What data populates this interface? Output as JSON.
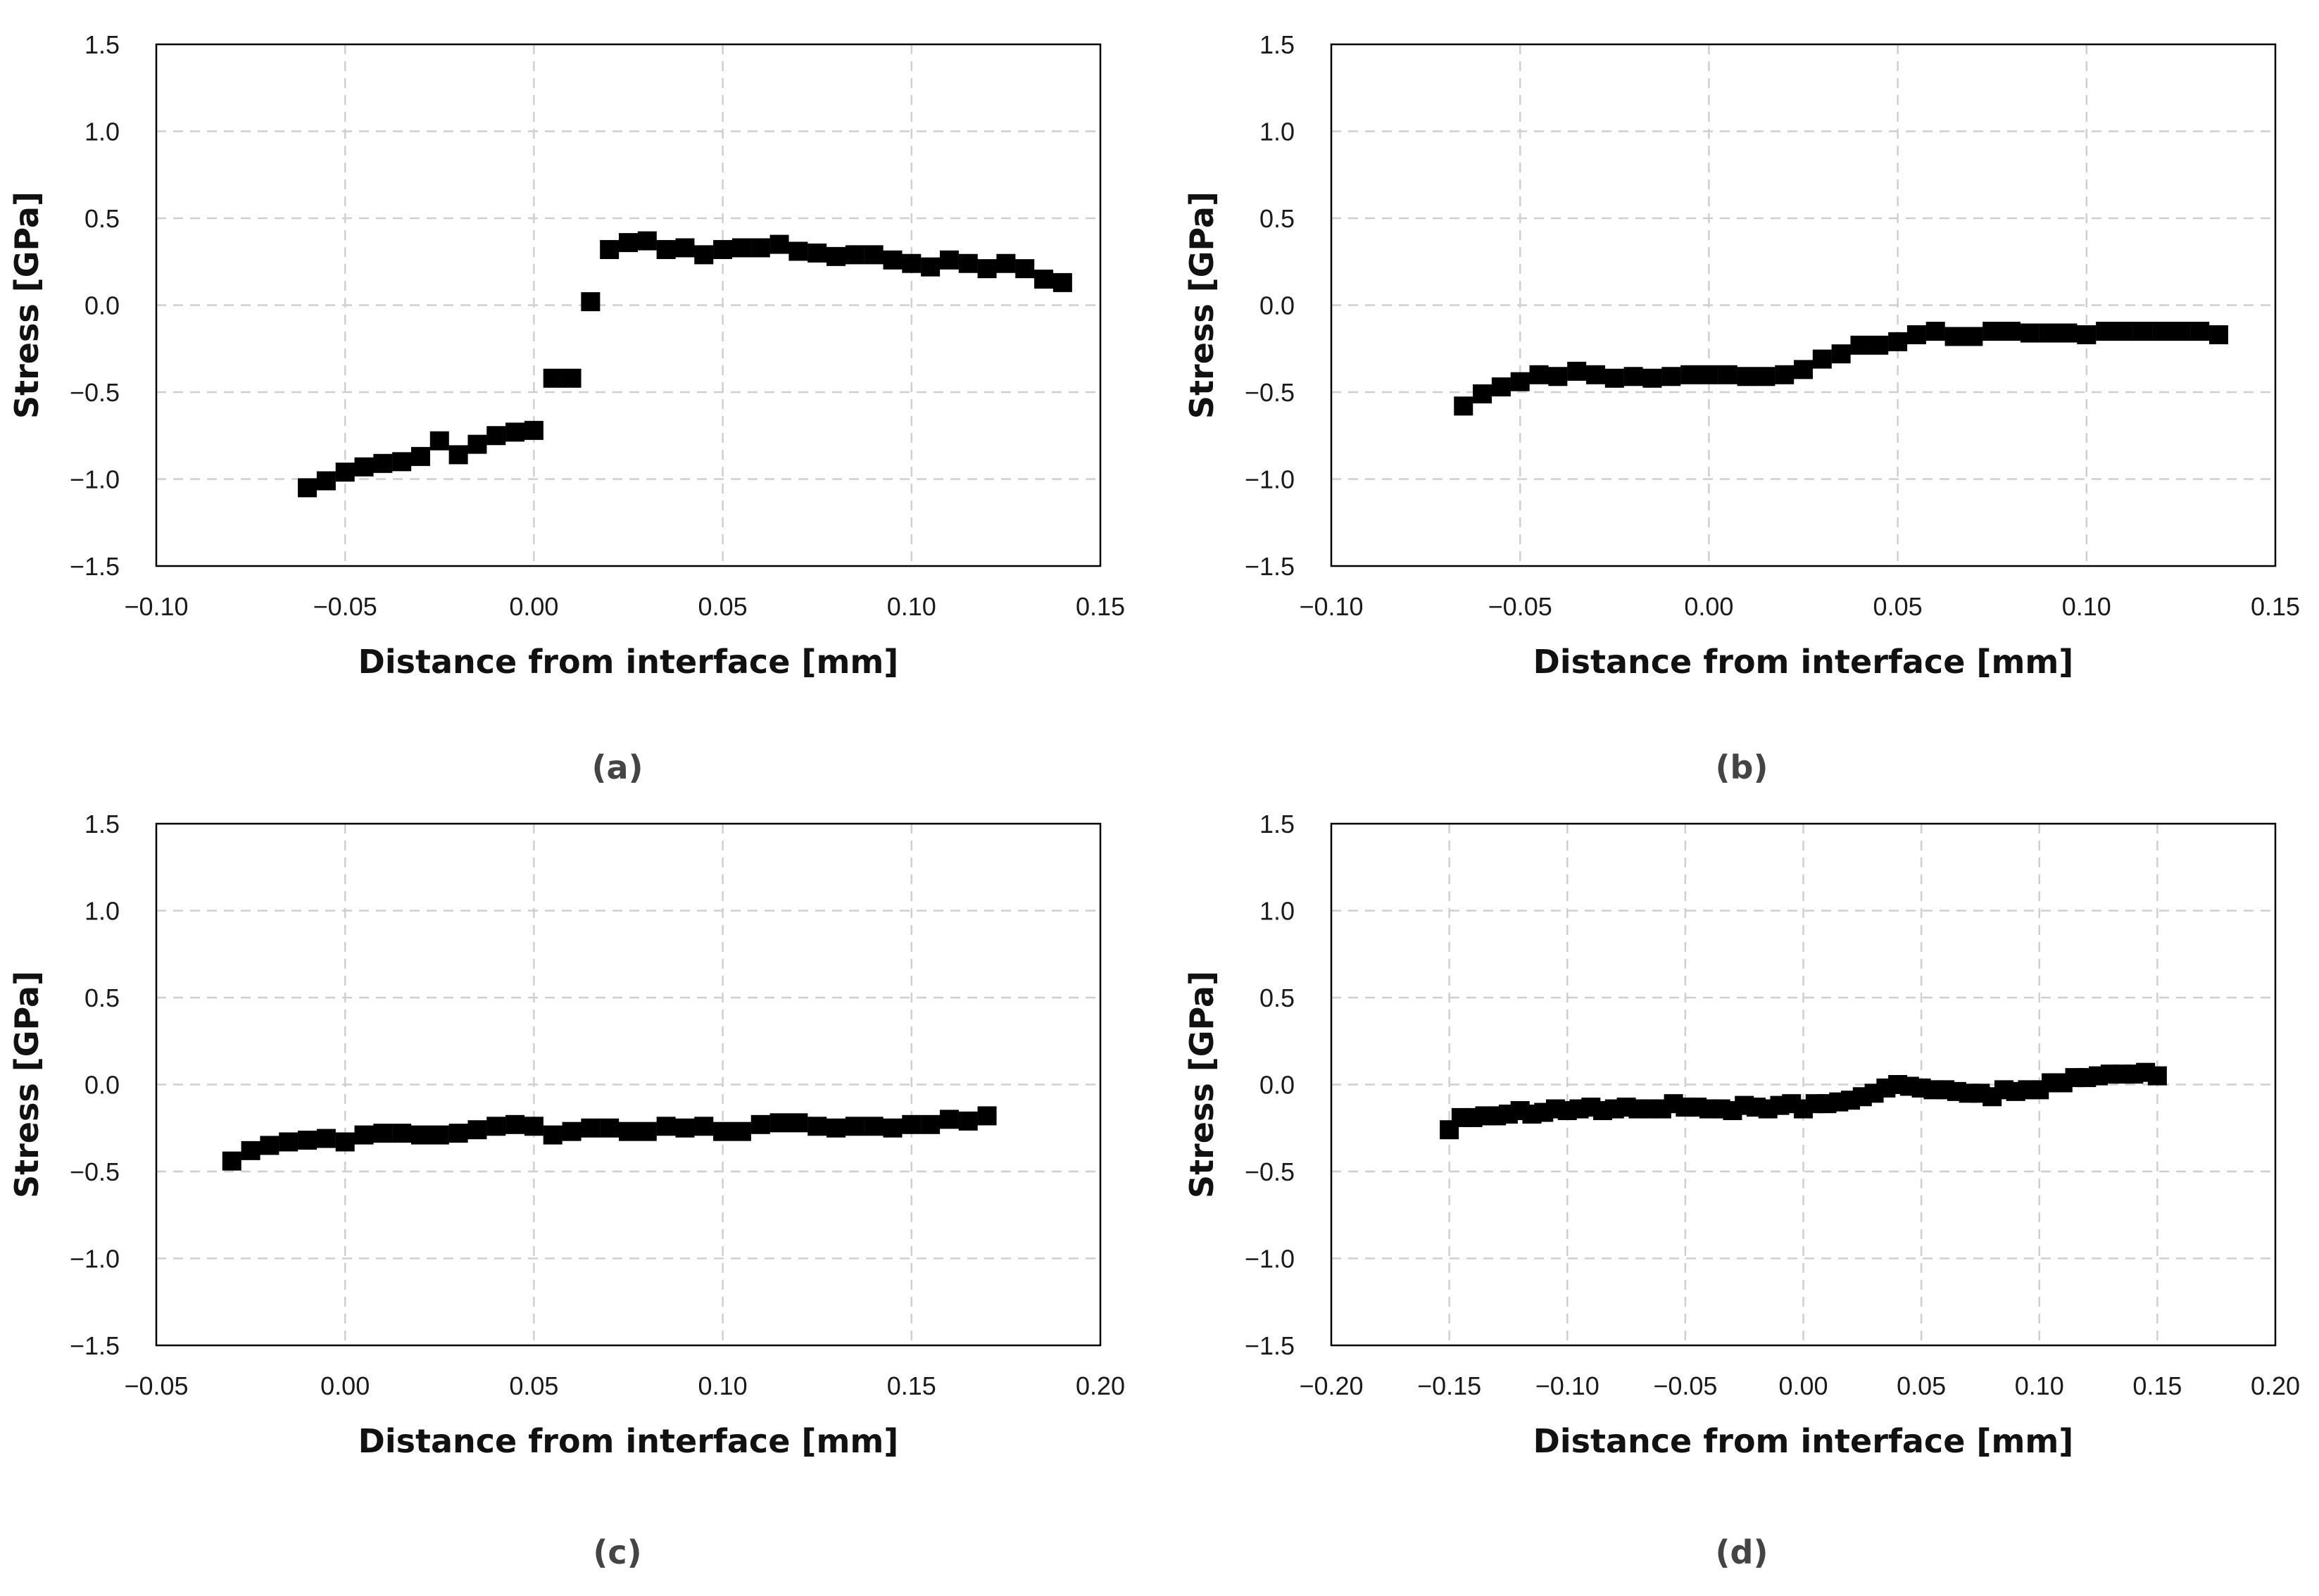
{
  "chart_data": [
    {
      "type": "scatter",
      "panel_label": "(a)",
      "xlabel": "Distance from interface [mm]",
      "ylabel": "Stress [GPa]",
      "xlim": [
        -0.1,
        0.15
      ],
      "ylim": [
        -1.5,
        1.5
      ],
      "xticks": [
        -0.1,
        -0.05,
        0.0,
        0.05,
        0.1,
        0.15
      ],
      "xtick_labels": [
        "−0.10",
        "−0.05",
        "0.00",
        "0.05",
        "0.10",
        "0.15"
      ],
      "yticks": [
        -1.5,
        -1.0,
        -0.5,
        0.0,
        0.5,
        1.0,
        1.5
      ],
      "ytick_labels": [
        "−1.5",
        "−1.0",
        "−0.5",
        "0.0",
        "0.5",
        "1.0",
        "1.5"
      ],
      "grid": true,
      "marker": "square",
      "x": [
        -0.06,
        -0.055,
        -0.05,
        -0.045,
        -0.04,
        -0.035,
        -0.03,
        -0.025,
        -0.02,
        -0.015,
        -0.01,
        -0.005,
        0.0,
        0.005,
        0.01,
        0.015,
        0.02,
        0.025,
        0.03,
        0.035,
        0.04,
        0.045,
        0.05,
        0.055,
        0.06,
        0.065,
        0.07,
        0.075,
        0.08,
        0.085,
        0.09,
        0.095,
        0.1,
        0.105,
        0.11,
        0.115,
        0.12,
        0.125,
        0.13,
        0.135,
        0.14
      ],
      "y": [
        -1.05,
        -1.01,
        -0.96,
        -0.93,
        -0.91,
        -0.9,
        -0.87,
        -0.78,
        -0.86,
        -0.8,
        -0.75,
        -0.73,
        -0.72,
        -0.42,
        -0.42,
        0.02,
        0.32,
        0.36,
        0.37,
        0.32,
        0.33,
        0.29,
        0.32,
        0.33,
        0.33,
        0.35,
        0.31,
        0.3,
        0.28,
        0.29,
        0.29,
        0.26,
        0.24,
        0.22,
        0.26,
        0.24,
        0.21,
        0.24,
        0.21,
        0.15,
        0.13
      ]
    },
    {
      "type": "scatter",
      "panel_label": "(b)",
      "xlabel": "Distance from interface [mm]",
      "ylabel": "Stress [GPa]",
      "xlim": [
        -0.1,
        0.15
      ],
      "ylim": [
        -1.5,
        1.5
      ],
      "xticks": [
        -0.1,
        -0.05,
        0.0,
        0.05,
        0.1,
        0.15
      ],
      "xtick_labels": [
        "−0.10",
        "−0.05",
        "0.00",
        "0.05",
        "0.10",
        "0.15"
      ],
      "yticks": [
        -1.5,
        -1.0,
        -0.5,
        0.0,
        0.5,
        1.0,
        1.5
      ],
      "ytick_labels": [
        "−1.5",
        "−1.0",
        "−0.5",
        "0.0",
        "0.5",
        "1.0",
        "1.5"
      ],
      "grid": true,
      "marker": "square",
      "x": [
        -0.065,
        -0.06,
        -0.055,
        -0.05,
        -0.045,
        -0.04,
        -0.035,
        -0.03,
        -0.025,
        -0.02,
        -0.015,
        -0.01,
        -0.005,
        0.0,
        0.005,
        0.01,
        0.015,
        0.02,
        0.025,
        0.03,
        0.035,
        0.04,
        0.045,
        0.05,
        0.055,
        0.06,
        0.065,
        0.07,
        0.075,
        0.08,
        0.085,
        0.09,
        0.095,
        0.1,
        0.105,
        0.11,
        0.115,
        0.12,
        0.125,
        0.13,
        0.135
      ],
      "y": [
        -0.58,
        -0.51,
        -0.47,
        -0.44,
        -0.4,
        -0.41,
        -0.38,
        -0.4,
        -0.42,
        -0.41,
        -0.42,
        -0.41,
        -0.4,
        -0.4,
        -0.4,
        -0.41,
        -0.41,
        -0.4,
        -0.37,
        -0.31,
        -0.28,
        -0.23,
        -0.23,
        -0.21,
        -0.17,
        -0.15,
        -0.18,
        -0.18,
        -0.15,
        -0.15,
        -0.16,
        -0.16,
        -0.16,
        -0.17,
        -0.15,
        -0.15,
        -0.15,
        -0.15,
        -0.15,
        -0.15,
        -0.17
      ]
    },
    {
      "type": "scatter",
      "panel_label": "(c)",
      "xlabel": "Distance from interface [mm]",
      "ylabel": "Stress [GPa]",
      "xlim": [
        -0.05,
        0.2
      ],
      "ylim": [
        -1.5,
        1.5
      ],
      "xticks": [
        -0.05,
        0.0,
        0.05,
        0.1,
        0.15,
        0.2
      ],
      "xtick_labels": [
        "−0.05",
        "0.00",
        "0.05",
        "0.10",
        "0.15",
        "0.20"
      ],
      "yticks": [
        -1.5,
        -1.0,
        -0.5,
        0.0,
        0.5,
        1.0,
        1.5
      ],
      "ytick_labels": [
        "−1.5",
        "−1.0",
        "−0.5",
        "0.0",
        "0.5",
        "1.0",
        "1.5"
      ],
      "grid": true,
      "marker": "square",
      "x": [
        -0.03,
        -0.025,
        -0.02,
        -0.015,
        -0.01,
        -0.005,
        0.0,
        0.005,
        0.01,
        0.015,
        0.02,
        0.025,
        0.03,
        0.035,
        0.04,
        0.045,
        0.05,
        0.055,
        0.06,
        0.065,
        0.07,
        0.075,
        0.08,
        0.085,
        0.09,
        0.095,
        0.1,
        0.105,
        0.11,
        0.115,
        0.12,
        0.125,
        0.13,
        0.135,
        0.14,
        0.145,
        0.15,
        0.155,
        0.16,
        0.165,
        0.17
      ],
      "y": [
        -0.44,
        -0.38,
        -0.35,
        -0.33,
        -0.32,
        -0.31,
        -0.33,
        -0.29,
        -0.28,
        -0.28,
        -0.29,
        -0.29,
        -0.28,
        -0.26,
        -0.24,
        -0.23,
        -0.24,
        -0.29,
        -0.27,
        -0.25,
        -0.25,
        -0.27,
        -0.27,
        -0.24,
        -0.25,
        -0.24,
        -0.27,
        -0.27,
        -0.23,
        -0.22,
        -0.22,
        -0.24,
        -0.25,
        -0.24,
        -0.24,
        -0.25,
        -0.23,
        -0.23,
        -0.2,
        -0.21,
        -0.18
      ]
    },
    {
      "type": "scatter",
      "panel_label": "(d)",
      "xlabel": "Distance from interface [mm]",
      "ylabel": "Stress [GPa]",
      "xlim": [
        -0.2,
        0.2
      ],
      "ylim": [
        -1.5,
        1.5
      ],
      "xticks": [
        -0.2,
        -0.15,
        -0.1,
        -0.05,
        0.0,
        0.05,
        0.1,
        0.15,
        0.2
      ],
      "xtick_labels": [
        "−0.20",
        "−0.15",
        "−0.10",
        "−0.05",
        "0.00",
        "0.05",
        "0.10",
        "0.15",
        "0.20"
      ],
      "yticks": [
        -1.5,
        -1.0,
        -0.5,
        0.0,
        0.5,
        1.0,
        1.5
      ],
      "ytick_labels": [
        "−1.5",
        "−1.0",
        "−0.5",
        "0.0",
        "0.5",
        "1.0",
        "1.5"
      ],
      "grid": true,
      "marker": "square",
      "x": [
        -0.15,
        -0.145,
        -0.14,
        -0.135,
        -0.13,
        -0.125,
        -0.12,
        -0.115,
        -0.11,
        -0.105,
        -0.1,
        -0.095,
        -0.09,
        -0.085,
        -0.08,
        -0.075,
        -0.07,
        -0.065,
        -0.06,
        -0.055,
        -0.05,
        -0.045,
        -0.04,
        -0.035,
        -0.03,
        -0.025,
        -0.02,
        -0.015,
        -0.01,
        -0.005,
        0.0,
        0.005,
        0.01,
        0.015,
        0.02,
        0.025,
        0.03,
        0.035,
        0.04,
        0.045,
        0.05,
        0.055,
        0.06,
        0.065,
        0.07,
        0.075,
        0.08,
        0.085,
        0.09,
        0.095,
        0.1,
        0.105,
        0.11,
        0.115,
        0.12,
        0.125,
        0.13,
        0.135,
        0.14,
        0.145,
        0.15
      ],
      "y": [
        -0.26,
        -0.19,
        -0.19,
        -0.18,
        -0.18,
        -0.17,
        -0.15,
        -0.17,
        -0.16,
        -0.14,
        -0.15,
        -0.14,
        -0.13,
        -0.15,
        -0.14,
        -0.13,
        -0.14,
        -0.14,
        -0.14,
        -0.11,
        -0.13,
        -0.13,
        -0.14,
        -0.14,
        -0.15,
        -0.12,
        -0.13,
        -0.14,
        -0.12,
        -0.11,
        -0.14,
        -0.11,
        -0.11,
        -0.1,
        -0.09,
        -0.07,
        -0.05,
        -0.02,
        0.0,
        -0.01,
        -0.02,
        -0.03,
        -0.03,
        -0.04,
        -0.05,
        -0.05,
        -0.07,
        -0.03,
        -0.04,
        -0.03,
        -0.03,
        0.01,
        0.01,
        0.04,
        0.04,
        0.05,
        0.06,
        0.06,
        0.06,
        0.07,
        0.05
      ]
    }
  ]
}
